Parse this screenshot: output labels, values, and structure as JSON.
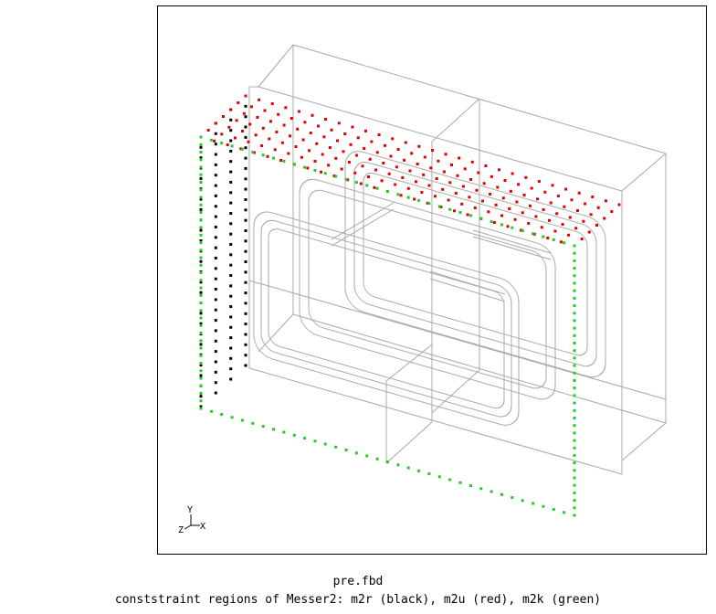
{
  "window": {
    "filename": "pre.fbd",
    "status_line": "conststraint regions of Messer2: m2r (black), m2u (red), m2k (green)"
  },
  "axis_triad": {
    "x": "X",
    "y": "Y",
    "z": "Z"
  },
  "colors": {
    "background": "#ffffff",
    "frame": "#000000",
    "wireframe": "#a8a8a8",
    "m2r": "#000000",
    "m2u": "#e00000",
    "m2k": "#22cc22"
  },
  "regions": [
    {
      "name": "m2r",
      "color_name": "black"
    },
    {
      "name": "m2u",
      "color_name": "red"
    },
    {
      "name": "m2k",
      "color_name": "green"
    }
  ]
}
